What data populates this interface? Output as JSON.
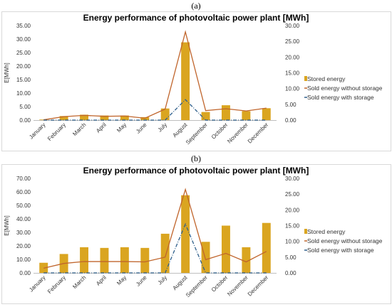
{
  "panels": [
    {
      "label": "(a)"
    },
    {
      "label": "(b)"
    }
  ],
  "colors": {
    "stored": "#DAA520",
    "without": "#C0652C",
    "with": "#2F5F8A",
    "frame": "#D9D9D9"
  },
  "chart_data": [
    {
      "type": "bar",
      "title": "Energy performance of photovoltaic power  plant [MWh]",
      "ylabel": "E[MWh]",
      "categories": [
        "January",
        "February",
        "March",
        "April",
        "May",
        "June",
        "July",
        "August",
        "September",
        "October",
        "November",
        "December"
      ],
      "ylim_left": [
        0,
        35
      ],
      "ylim_right": [
        0,
        30
      ],
      "left_ticks": [
        "0.00",
        "5.00",
        "10.00",
        "15.00",
        "20.00",
        "25.00",
        "30.00",
        "35.00"
      ],
      "right_ticks": [
        "0.00",
        "5.00",
        "10.00",
        "15.00",
        "20.00",
        "25.00",
        "30.00"
      ],
      "series": [
        {
          "name": "Stored energy",
          "kind": "bar",
          "axis": "left",
          "values": [
            0.2,
            1.5,
            2.0,
            1.7,
            1.7,
            1.1,
            4.3,
            28.8,
            3.0,
            5.5,
            3.3,
            4.4
          ]
        },
        {
          "name": "Sold energy without storage",
          "kind": "line",
          "axis": "right",
          "values": [
            0.1,
            1.1,
            1.5,
            1.2,
            1.3,
            0.6,
            3.5,
            28.0,
            3.0,
            3.6,
            2.9,
            3.8
          ]
        },
        {
          "name": "Sold energy with storage",
          "kind": "line-dash",
          "axis": "right",
          "values": [
            0.0,
            0.0,
            0.0,
            0.0,
            0.0,
            0.0,
            0.0,
            6.5,
            0.0,
            0.0,
            0.0,
            0.0
          ]
        }
      ],
      "legend_position": "right"
    },
    {
      "type": "bar",
      "title": "Energy performance of photovoltaic power  plant [MWh]",
      "ylabel": "E[MWh]",
      "categories": [
        "January",
        "February",
        "March",
        "April",
        "May",
        "June",
        "July",
        "August",
        "September",
        "October",
        "November",
        "December"
      ],
      "ylim_left": [
        0,
        70
      ],
      "ylim_right": [
        0,
        30
      ],
      "left_ticks": [
        "0.00",
        "10.00",
        "20.00",
        "30.00",
        "40.00",
        "50.00",
        "60.00",
        "70.00"
      ],
      "right_ticks": [
        "0.00",
        "5.00",
        "10.00",
        "15.00",
        "20.00",
        "25.00",
        "30.00"
      ],
      "series": [
        {
          "name": "Stored energy",
          "kind": "bar",
          "axis": "left",
          "values": [
            7.5,
            14.0,
            19.0,
            18.5,
            19.0,
            18.5,
            29.0,
            57.5,
            23.0,
            35.0,
            19.0,
            37.0
          ]
        },
        {
          "name": "Sold energy without storage",
          "kind": "line",
          "axis": "right",
          "values": [
            1.5,
            3.0,
            3.6,
            3.6,
            3.6,
            3.5,
            5.0,
            26.5,
            4.2,
            6.2,
            3.5,
            6.8
          ]
        },
        {
          "name": "Sold energy with storage",
          "kind": "line-dash",
          "axis": "right",
          "values": [
            0.0,
            0.0,
            0.0,
            0.0,
            0.0,
            0.0,
            0.0,
            15.5,
            0.0,
            0.0,
            0.0,
            0.0
          ]
        }
      ],
      "legend_position": "right"
    }
  ]
}
